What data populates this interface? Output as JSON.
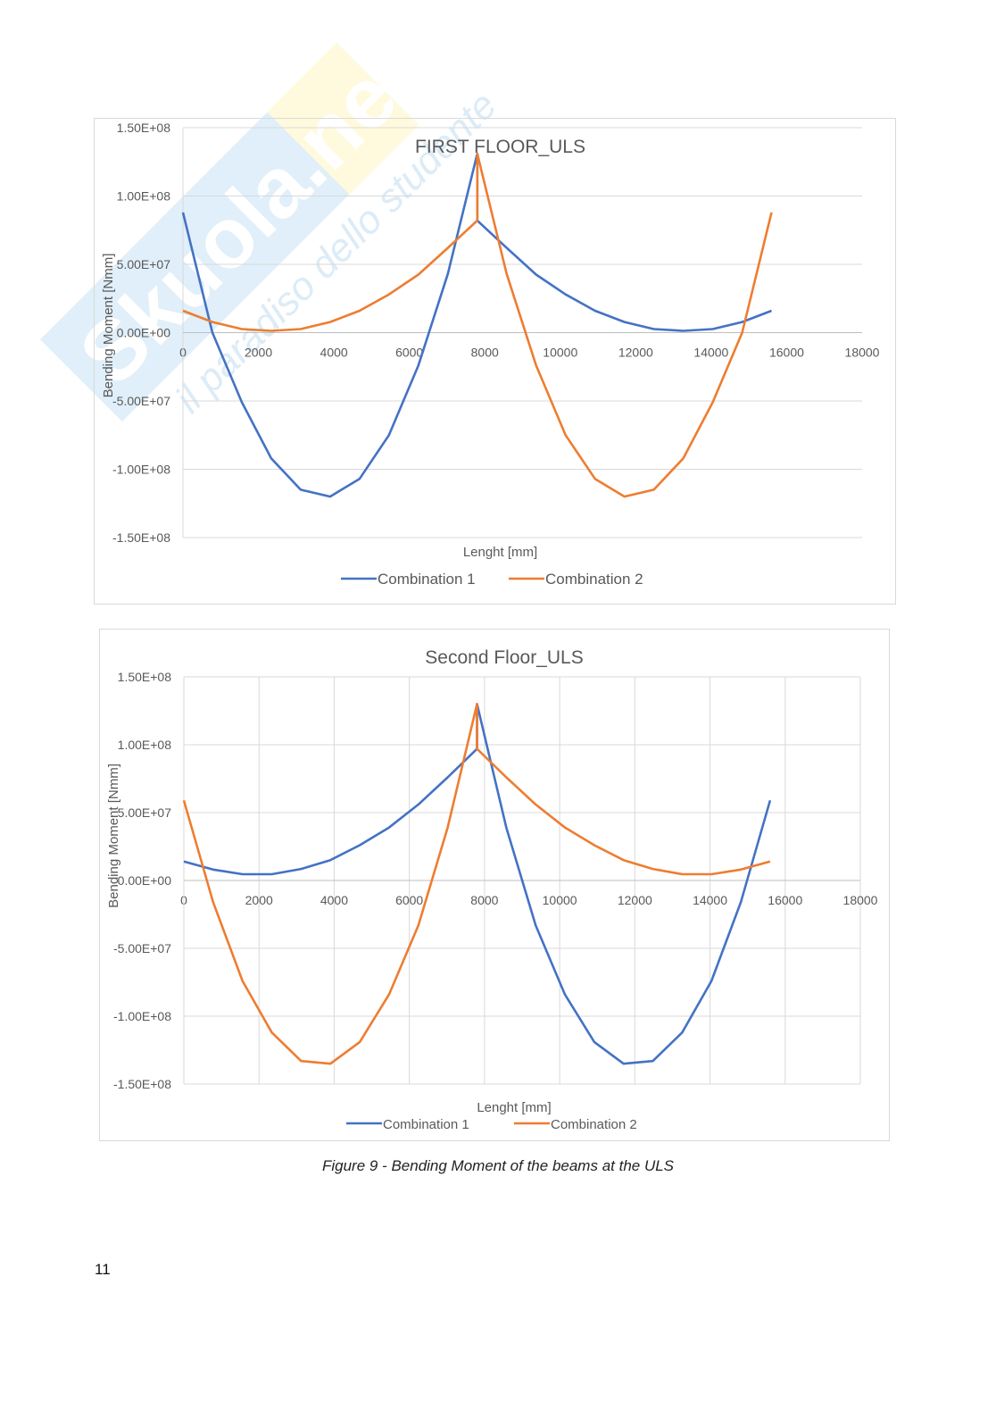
{
  "watermark": {
    "text": "Skuola.net",
    "tagline": "il paradiso dello studente"
  },
  "charts": [
    {
      "title": "FIRST FLOOR_ULS",
      "xlabel": "Lenght [mm]",
      "ylabel": "Bending Moment [Nmm]"
    },
    {
      "title": "Second Floor_ULS",
      "xlabel": "Lenght [mm]",
      "ylabel": "Bending  Moment [Nmm]"
    }
  ],
  "chart_data": [
    {
      "type": "line",
      "title": "FIRST FLOOR_ULS",
      "xlabel": "Lenght [mm]",
      "ylabel": "Bending Moment [Nmm]",
      "xlim": [
        0,
        18000
      ],
      "ylim": [
        -150000000,
        150000000
      ],
      "xticks": [
        "0",
        "2000",
        "4000",
        "6000",
        "8000",
        "10000",
        "12000",
        "14000",
        "16000",
        "18000"
      ],
      "yticks": [
        "1.50E+08",
        "1.00E+08",
        "5.00E+07",
        "0.00E+00",
        "-5.00E+07",
        "-1.00E+08",
        "-1.50E+08"
      ],
      "grid": "horizontal",
      "legend": "bottom",
      "series": [
        {
          "name": "Combination 1",
          "color": "#4472c4",
          "x": [
            0,
            780,
            1560,
            2340,
            3120,
            3900,
            4680,
            5460,
            6240,
            7020,
            7800,
            7800,
            8580,
            9360,
            10140,
            10920,
            11700,
            12480,
            13260,
            14040,
            14820,
            15600
          ],
          "y": [
            88000000,
            0,
            -51000000,
            -92000000,
            -115000000,
            -120000000,
            -107000000,
            -75000000,
            -24000000,
            43000000,
            131000000,
            82000000,
            62000000,
            42500000,
            28000000,
            16000000,
            7800000,
            2600000,
            1300000,
            2600000,
            7800000,
            16000000
          ]
        },
        {
          "name": "Combination 2",
          "color": "#ed7d31",
          "x": [
            0,
            780,
            1560,
            2340,
            3120,
            3900,
            4680,
            5460,
            6240,
            7020,
            7800,
            7800,
            8580,
            9360,
            10140,
            10920,
            11700,
            12480,
            13260,
            14040,
            14820,
            15600
          ],
          "y": [
            16000000,
            7800000,
            2600000,
            1300000,
            2600000,
            7800000,
            16000000,
            28000000,
            42500000,
            62000000,
            82000000,
            131000000,
            43000000,
            -24000000,
            -75000000,
            -107000000,
            -120000000,
            -115000000,
            -92000000,
            -51000000,
            0,
            88000000
          ]
        }
      ]
    },
    {
      "type": "line",
      "title": "Second Floor_ULS",
      "xlabel": "Lenght [mm]",
      "ylabel": "Bending  Moment [Nmm]",
      "xlim": [
        0,
        18000
      ],
      "ylim": [
        -150000000,
        150000000
      ],
      "xticks": [
        "0",
        "2000",
        "4000",
        "6000",
        "8000",
        "10000",
        "12000",
        "14000",
        "16000",
        "18000"
      ],
      "yticks": [
        "1.50E+08",
        "1.00E+08",
        "5.00E+07",
        "0.00E+00",
        "-5.00E+07",
        "-1.00E+08",
        "-1.50E+08"
      ],
      "grid": "both",
      "legend": "bottom",
      "series": [
        {
          "name": "Combination 1",
          "color": "#4472c4",
          "x": [
            0,
            780,
            1560,
            2340,
            3120,
            3900,
            4680,
            5460,
            6240,
            7020,
            7800,
            7800,
            8580,
            9360,
            10140,
            10920,
            11700,
            12480,
            13260,
            14040,
            14820,
            15600
          ],
          "y": [
            14000000,
            8000000,
            4600000,
            4600000,
            8500000,
            15000000,
            26000000,
            39000000,
            56000000,
            76000000,
            97000000,
            130000000,
            39000000,
            -33000000,
            -84000000,
            -119000000,
            -135000000,
            -133000000,
            -112000000,
            -74000000,
            -16000000,
            59000000
          ]
        },
        {
          "name": "Combination 2",
          "color": "#ed7d31",
          "x": [
            0,
            780,
            1560,
            2340,
            3120,
            3900,
            4680,
            5460,
            6240,
            7020,
            7800,
            7800,
            8580,
            9360,
            10140,
            10920,
            11700,
            12480,
            13260,
            14040,
            14820,
            15600
          ],
          "y": [
            59000000,
            -16000000,
            -74000000,
            -112000000,
            -133000000,
            -135000000,
            -119000000,
            -84000000,
            -33000000,
            39000000,
            130000000,
            97000000,
            76000000,
            56000000,
            39000000,
            26000000,
            15000000,
            8500000,
            4600000,
            4600000,
            8000000,
            14000000
          ]
        }
      ]
    }
  ],
  "caption": "Figure 9 - Bending Moment of the beams at the ULS",
  "page_number": "11"
}
